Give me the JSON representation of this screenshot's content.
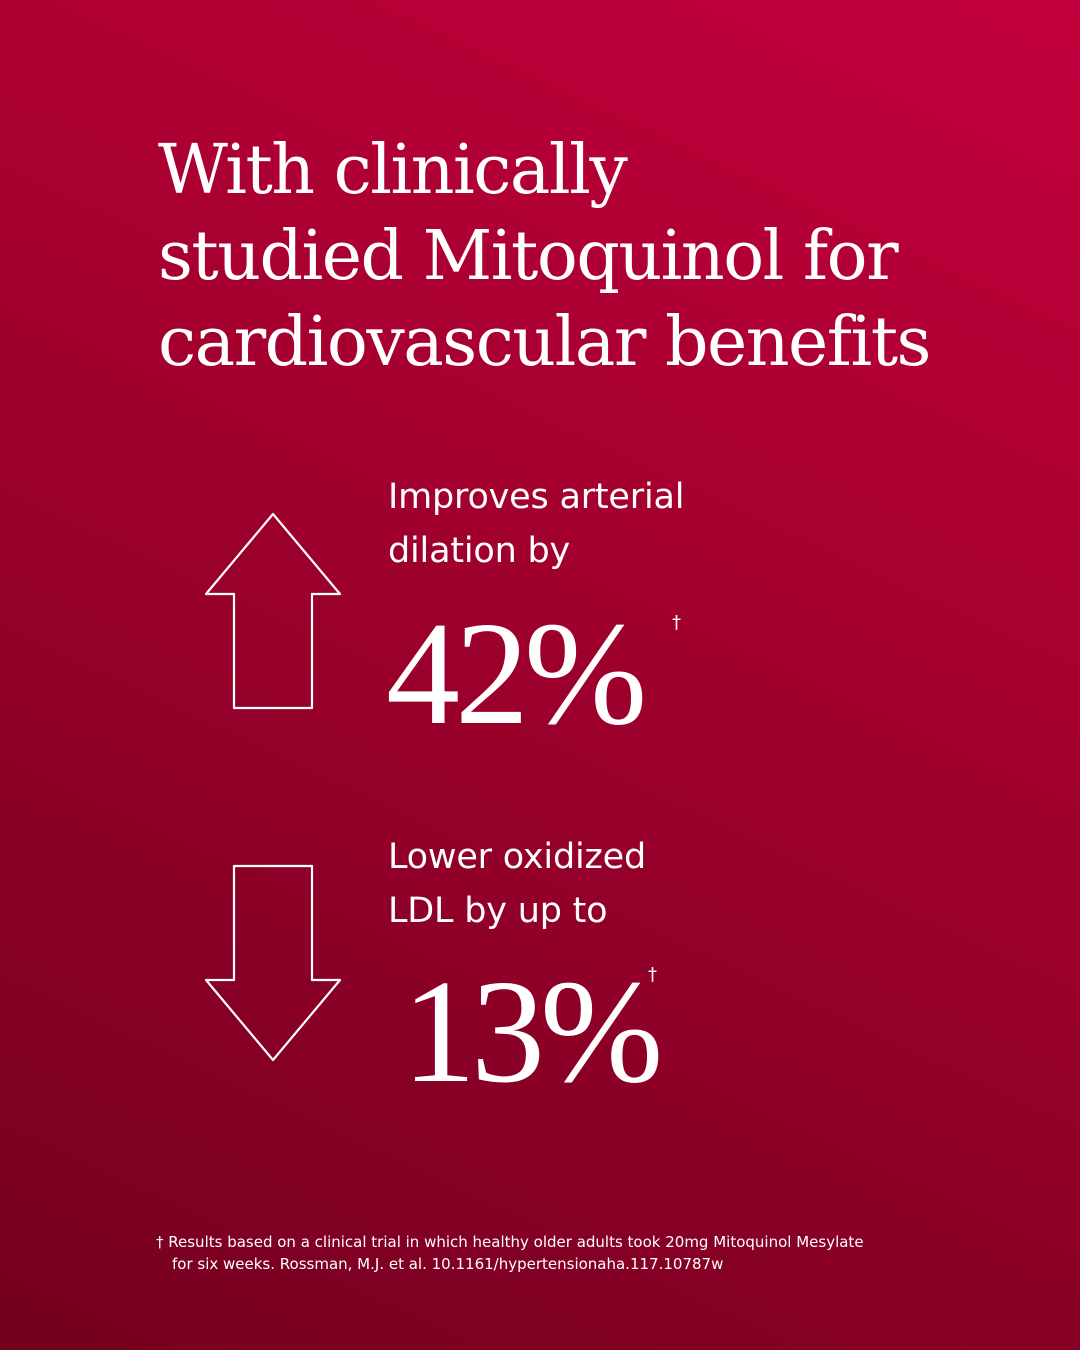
{
  "headline": {
    "lines": [
      "With clinically",
      "studied Mitoquinol for",
      "cardiovascular benefits"
    ]
  },
  "stats": [
    {
      "direction": "up",
      "icon": "arrow-up-outline-icon",
      "label_lines": [
        "Improves arterial",
        "dilation by"
      ],
      "value": "42%",
      "marker": "†"
    },
    {
      "direction": "down",
      "icon": "arrow-down-outline-icon",
      "label_lines": [
        "Lower oxidized",
        "LDL by up to"
      ],
      "value": "13%",
      "marker": "†"
    }
  ],
  "footnote": {
    "lines": [
      "† Results based on a clinical trial in which healthy older adults took 20mg Mitoquinol Mesylate",
      "for six weeks. Rossman, M.J. et al. 10.1161/hypertensionaha.117.10787w"
    ]
  },
  "colors": {
    "background_top": "#c3003d",
    "background_bottom": "#740020",
    "text": "#ffffff"
  }
}
